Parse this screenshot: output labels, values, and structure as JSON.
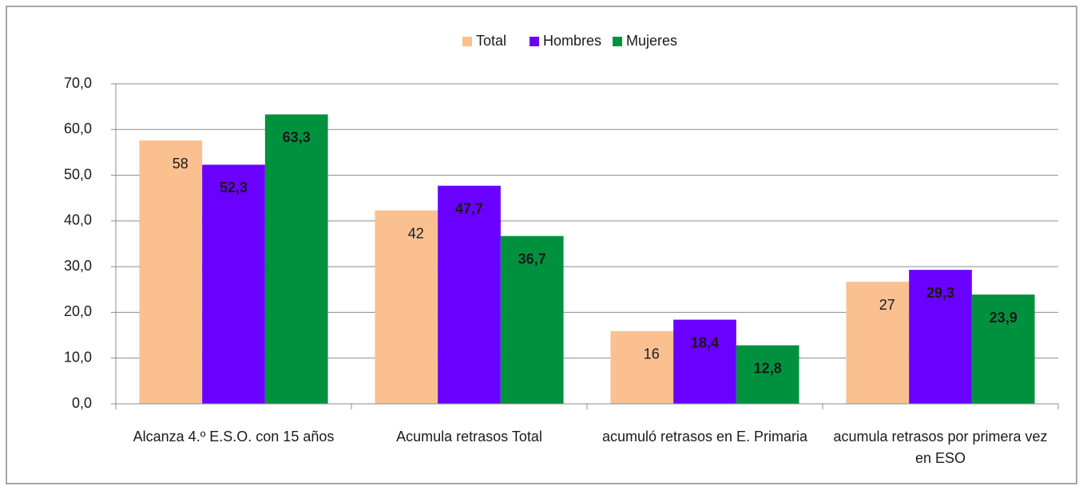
{
  "chart_data": {
    "type": "bar",
    "categories": [
      "Alcanza 4.º E.S.O. con 15 años",
      "Acumula retrasos Total",
      "acumuló retrasos en E. Primaria",
      "acumula retrasos por primera vez en ESO"
    ],
    "series": [
      {
        "name": "Total",
        "color": "#fac090",
        "values": [
          57.6,
          42.3,
          15.9,
          26.7
        ],
        "value_labels": [
          "58",
          "42",
          "16",
          "27"
        ],
        "label_color": "#1a1a1a"
      },
      {
        "name": "Hombres",
        "color": "#6a00ff",
        "values": [
          52.3,
          47.7,
          18.4,
          29.3
        ],
        "value_labels": [
          "52,3",
          "47,7",
          "18,4",
          "29,3"
        ],
        "label_color": "#ffffff"
      },
      {
        "name": "Mujeres",
        "color": "#00913f",
        "values": [
          63.3,
          36.7,
          12.8,
          23.9
        ],
        "value_labels": [
          "63,3",
          "36,7",
          "12,8",
          "23,9"
        ],
        "label_color": "#ffffff"
      }
    ],
    "ylim": [
      0,
      70
    ],
    "yticks": [
      {
        "value": 0,
        "label": "0,0"
      },
      {
        "value": 10,
        "label": "10,0"
      },
      {
        "value": 20,
        "label": "20,0"
      },
      {
        "value": 30,
        "label": "30,0"
      },
      {
        "value": 40,
        "label": "40,0"
      },
      {
        "value": 50,
        "label": "50,0"
      },
      {
        "value": 60,
        "label": "60,0"
      },
      {
        "value": 70,
        "label": "70,0"
      }
    ],
    "grid": true,
    "legend": "top"
  }
}
